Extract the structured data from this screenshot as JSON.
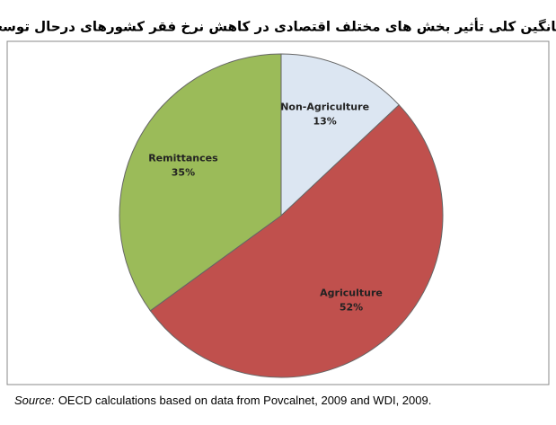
{
  "chart_data": {
    "type": "pie",
    "title": "میانگین کلی تأثیر بخش های مختلف اقتصادی در کاهش نرخ فقر کشورهای درحال توسعه",
    "categories": [
      "Non-Agriculture",
      "Agriculture",
      "Remittances"
    ],
    "values": [
      13,
      52,
      35
    ],
    "value_labels": [
      "13%",
      "52%",
      "35%"
    ],
    "colors": [
      "#dce6f2",
      "#c0504d",
      "#9bbb59"
    ],
    "source_label": "Source:",
    "source_text": "OECD calculations based on data from Povcalnet, 2009 and WDI, 2009."
  }
}
